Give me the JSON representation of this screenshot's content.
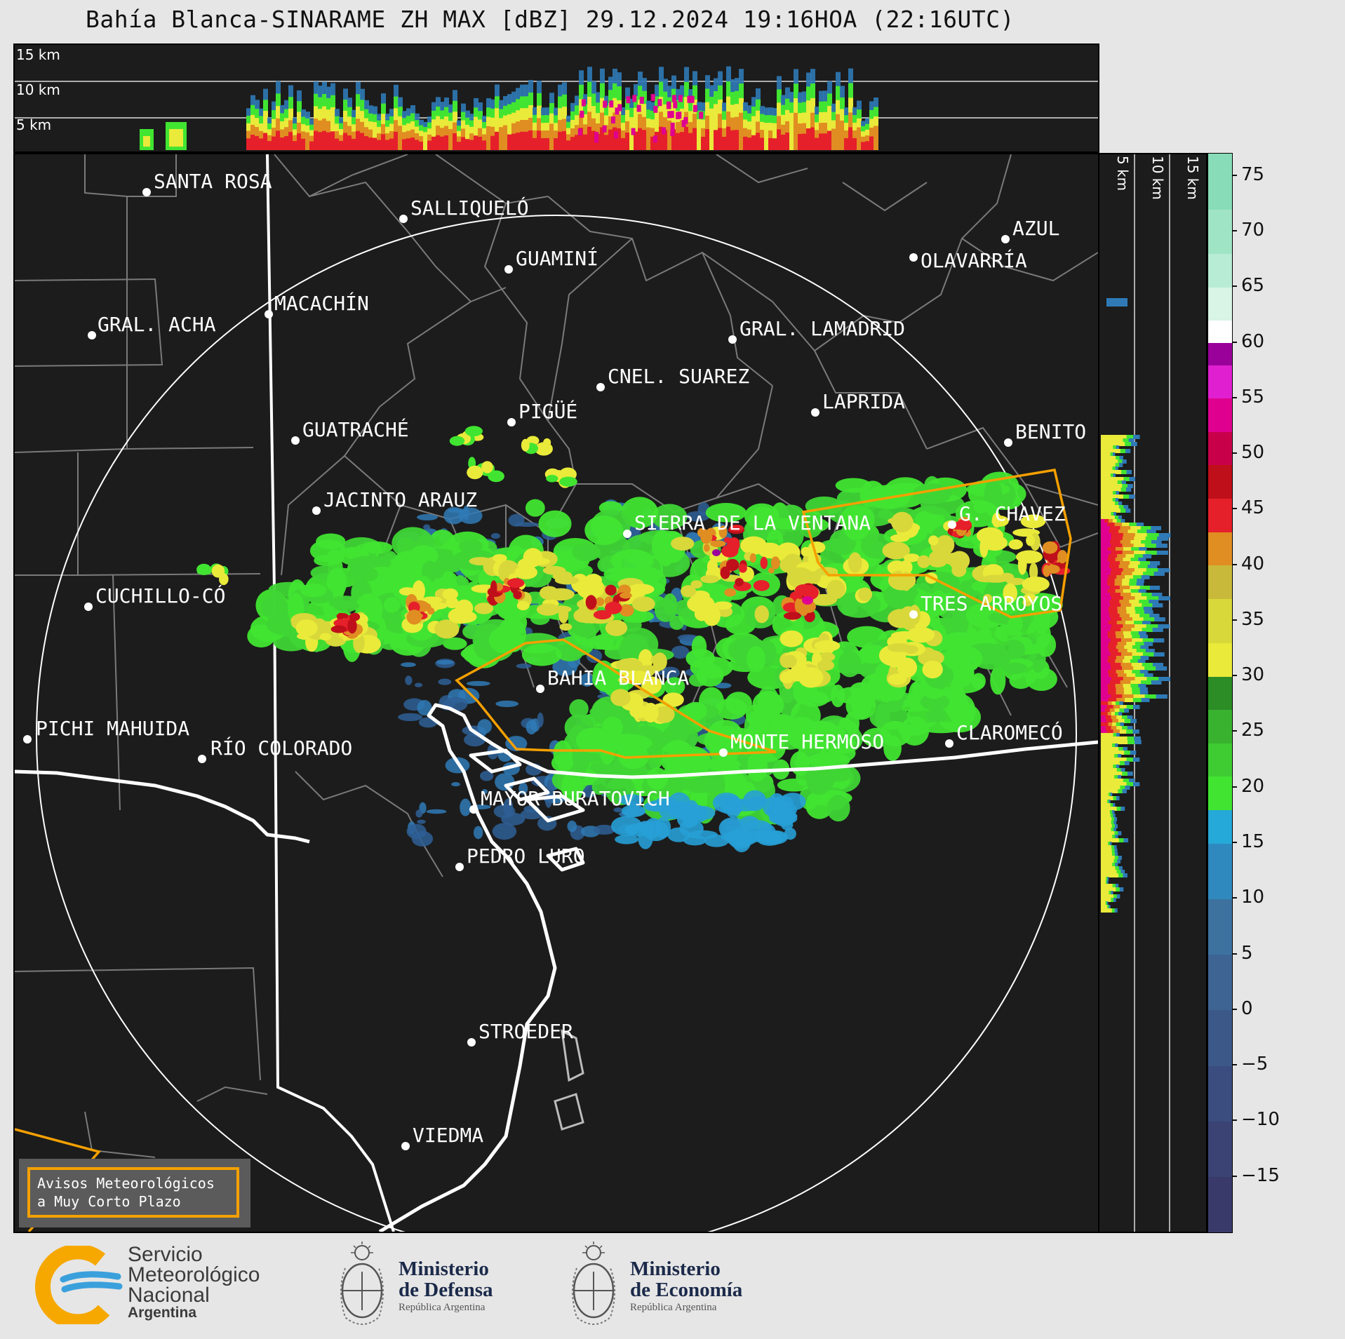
{
  "title": "Bahía Blanca-SINARAME ZH MAX [dBZ] 29.12.2024 19:16HOA (22:16UTC)",
  "top_panel": {
    "height_labels": [
      "15 km",
      "10 km",
      "5 km"
    ]
  },
  "side_panel": {
    "height_labels": [
      "5 km",
      "10 km",
      "15 km"
    ]
  },
  "colorbar": {
    "unit": "dBZ",
    "ticks": [
      "75",
      "70",
      "65",
      "60",
      "55",
      "50",
      "45",
      "40",
      "35",
      "30",
      "25",
      "20",
      "15",
      "10",
      "5",
      "0",
      "−5",
      "−10",
      "−15"
    ],
    "min": -20,
    "max": 77,
    "segments": [
      {
        "from": -20,
        "to": -15,
        "color": "#3a3a6a"
      },
      {
        "from": -15,
        "to": -10,
        "color": "#3a4374"
      },
      {
        "from": -10,
        "to": -5,
        "color": "#3b4d7e"
      },
      {
        "from": -5,
        "to": 0,
        "color": "#3c5888"
      },
      {
        "from": 0,
        "to": 5,
        "color": "#3d6493"
      },
      {
        "from": 5,
        "to": 10,
        "color": "#3d729f"
      },
      {
        "from": 10,
        "to": 15,
        "color": "#2f89bf"
      },
      {
        "from": 15,
        "to": 18,
        "color": "#25a9d8"
      },
      {
        "from": 18,
        "to": 21,
        "color": "#41e531"
      },
      {
        "from": 21,
        "to": 24,
        "color": "#3fcc33"
      },
      {
        "from": 24,
        "to": 27,
        "color": "#39b22f"
      },
      {
        "from": 27,
        "to": 30,
        "color": "#2c8c26"
      },
      {
        "from": 30,
        "to": 33,
        "color": "#eaea3a"
      },
      {
        "from": 33,
        "to": 37,
        "color": "#d8d83a"
      },
      {
        "from": 37,
        "to": 40,
        "color": "#c9b93a"
      },
      {
        "from": 40,
        "to": 43,
        "color": "#e08d22"
      },
      {
        "from": 43,
        "to": 46,
        "color": "#e6202a"
      },
      {
        "from": 46,
        "to": 49,
        "color": "#bf0f1a"
      },
      {
        "from": 49,
        "to": 52,
        "color": "#c8004a"
      },
      {
        "from": 52,
        "to": 55,
        "color": "#e00090"
      },
      {
        "from": 55,
        "to": 58,
        "color": "#e020d0"
      },
      {
        "from": 58,
        "to": 60,
        "color": "#9a009a"
      },
      {
        "from": 60,
        "to": 62,
        "color": "#ffffff"
      },
      {
        "from": 62,
        "to": 65,
        "color": "#d8f5e6"
      },
      {
        "from": 65,
        "to": 68,
        "color": "#b8ecd5"
      },
      {
        "from": 68,
        "to": 72,
        "color": "#a0e4c6"
      },
      {
        "from": 72,
        "to": 77,
        "color": "#88dcb8"
      }
    ]
  },
  "cities": [
    {
      "name": "SANTA ROSA"
    },
    {
      "name": "SALLIQUELÓ"
    },
    {
      "name": "GUAMINÍ"
    },
    {
      "name": "MACACHÍN"
    },
    {
      "name": "GRAL. ACHA"
    },
    {
      "name": "CNEL. SUAREZ"
    },
    {
      "name": "PIGÜÉ"
    },
    {
      "name": "GUATRACHÉ"
    },
    {
      "name": "GRAL. LAMADRID"
    },
    {
      "name": "LAPRIDA"
    },
    {
      "name": "AZUL"
    },
    {
      "name": "OLAVARRÍA"
    },
    {
      "name": "BENITO"
    },
    {
      "name": "JACINTO ARAUZ"
    },
    {
      "name": "SIERRA DE LA VENTANA"
    },
    {
      "name": "G. CHAVEZ"
    },
    {
      "name": "CUCHILLO-CÓ"
    },
    {
      "name": "TRES ARROYOS"
    },
    {
      "name": "BAHIA BLANCA"
    },
    {
      "name": "PICHI MAHUIDA"
    },
    {
      "name": "RÍO COLORADO"
    },
    {
      "name": "MONTE HERMOSO"
    },
    {
      "name": "CLAROMECÓ"
    },
    {
      "name": "MAYOR BURATOVICH"
    },
    {
      "name": "PEDRO LURO"
    },
    {
      "name": "STROEDER"
    },
    {
      "name": "VIEDMA"
    }
  ],
  "warning_box": {
    "line1": "Avisos Meteorológicos",
    "line2": "a Muy Corto Plazo",
    "border_color": "#f5a000"
  },
  "footer": {
    "smn": {
      "line1": "Servicio",
      "line2": "Meteorológico",
      "line3": "Nacional",
      "line4": "Argentina"
    },
    "defensa": {
      "line1": "Ministerio",
      "line2": "de Defensa",
      "line3": "República Argentina"
    },
    "economia": {
      "line1": "Ministerio",
      "line2": "de Economía",
      "line3": "República Argentina"
    }
  },
  "colors": {
    "background": "#e6e6e6",
    "panel": "#1c1c1c",
    "warning_polygon": "#f5a000",
    "border_lines": "#7a7a7a",
    "coast": "#ffffff"
  }
}
